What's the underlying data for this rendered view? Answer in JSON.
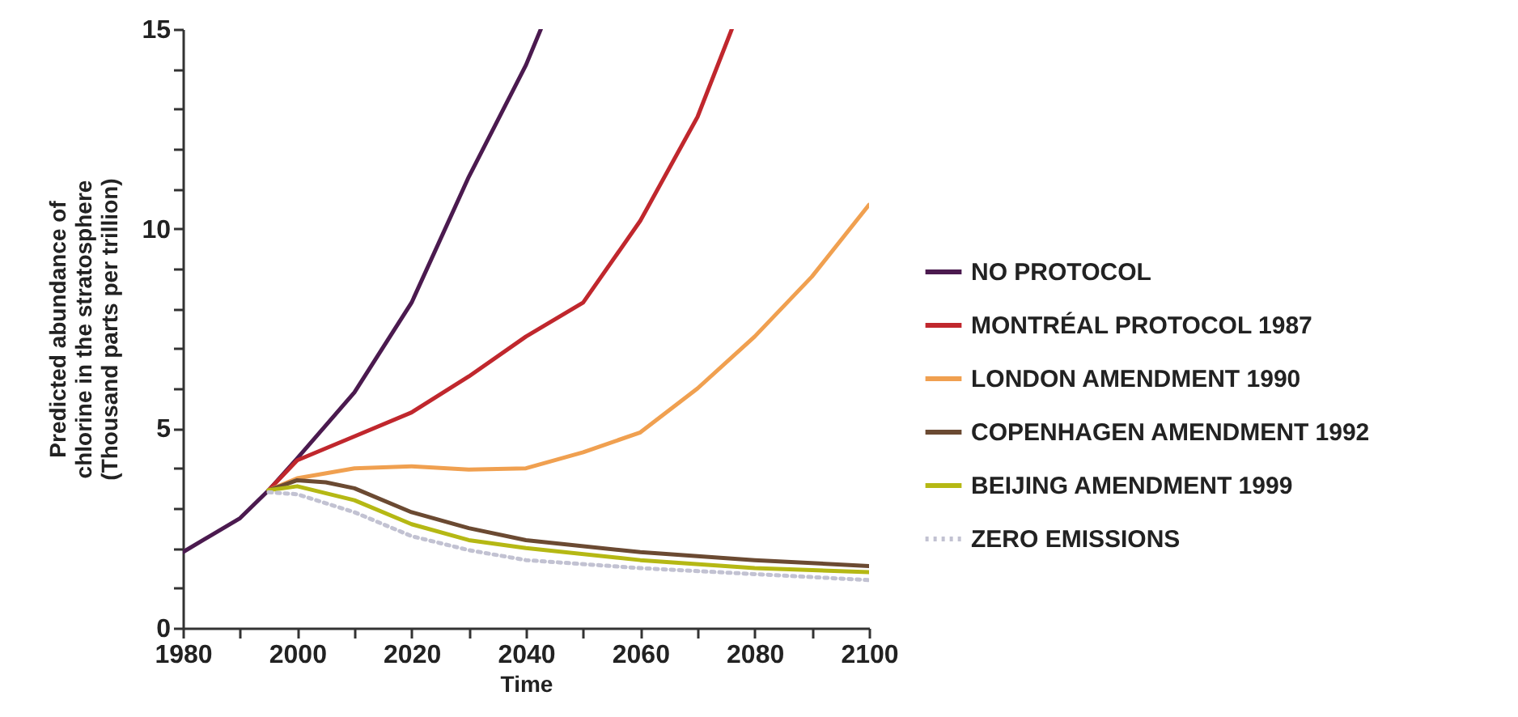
{
  "chart_data": {
    "type": "line",
    "xlabel": "Time",
    "ylabel": "Predicted abundance of\nchlorine in the stratosphere\n(Thousand parts per trillion)",
    "xlim": [
      1980,
      2100
    ],
    "xticks": [
      1980,
      {
        "value": 1990,
        "label": null
      },
      2000,
      {
        "value": 2010,
        "label": null
      },
      2020,
      {
        "value": 2030,
        "label": null
      },
      2040,
      {
        "value": 2050,
        "label": null
      },
      2060,
      {
        "value": 2070,
        "label": null
      },
      2080,
      {
        "value": 2090,
        "label": null
      },
      2100
    ],
    "ylim": [
      0,
      15
    ],
    "yticks": [
      0,
      {
        "value": 1,
        "label": null
      },
      {
        "value": 2,
        "label": null
      },
      {
        "value": 3,
        "label": null
      },
      {
        "value": 4,
        "label": null
      },
      5,
      {
        "value": 6,
        "label": null
      },
      {
        "value": 7,
        "label": null
      },
      {
        "value": 8,
        "label": null
      },
      {
        "value": 9,
        "label": null
      },
      10,
      {
        "value": 11,
        "label": null
      },
      {
        "value": 12,
        "label": null
      },
      {
        "value": 13,
        "label": null
      },
      {
        "value": 14,
        "label": null
      },
      15
    ],
    "grid": false,
    "legend": "right",
    "marker": "none",
    "series": [
      {
        "name": "NO PROTOCOL",
        "color": "#4b1a4f",
        "x": [
          1980,
          1990,
          1995,
          2000,
          2010,
          2020,
          2030,
          2040,
          2042.6
        ],
        "values": [
          1.9,
          2.75,
          3.45,
          4.25,
          5.9,
          8.15,
          11.3,
          14.1,
          15
        ]
      },
      {
        "name": "MONTRÉAL PROTOCOL 1987",
        "color": "#c0272d",
        "x": [
          1995,
          2000,
          2010,
          2020,
          2030,
          2040,
          2050,
          2060,
          2070,
          2076
        ],
        "values": [
          3.45,
          4.2,
          4.8,
          5.4,
          6.3,
          7.3,
          8.15,
          10.2,
          12.8,
          15
        ]
      },
      {
        "name": "LONDON AMENDMENT 1990",
        "color": "#f0a050",
        "x": [
          1995,
          2000,
          2010,
          2020,
          2030,
          2040,
          2050,
          2060,
          2070,
          2080,
          2090,
          2100
        ],
        "values": [
          3.45,
          3.75,
          4.0,
          4.05,
          3.97,
          4.0,
          4.4,
          4.9,
          6.0,
          7.3,
          8.8,
          10.6
        ]
      },
      {
        "name": "COPENHAGEN AMENDMENT 1992",
        "color": "#6b4a32",
        "x": [
          1995,
          2000,
          2005,
          2010,
          2020,
          2030,
          2040,
          2060,
          2080,
          2100
        ],
        "values": [
          3.45,
          3.7,
          3.65,
          3.5,
          2.9,
          2.5,
          2.2,
          1.9,
          1.7,
          1.55
        ]
      },
      {
        "name": "BEIJING AMENDMENT 1999",
        "color": "#b5b814",
        "x": [
          1995,
          2000,
          2010,
          2020,
          2030,
          2040,
          2060,
          2080,
          2100
        ],
        "values": [
          3.45,
          3.55,
          3.2,
          2.6,
          2.2,
          2.0,
          1.7,
          1.5,
          1.4
        ]
      },
      {
        "name": "ZERO EMISSIONS",
        "color": "#c2c2d2",
        "line_style": "dotted",
        "x": [
          1995,
          2000,
          2010,
          2020,
          2030,
          2040,
          2060,
          2080,
          2100
        ],
        "values": [
          3.4,
          3.35,
          2.9,
          2.3,
          1.95,
          1.7,
          1.5,
          1.35,
          1.2
        ]
      }
    ]
  }
}
